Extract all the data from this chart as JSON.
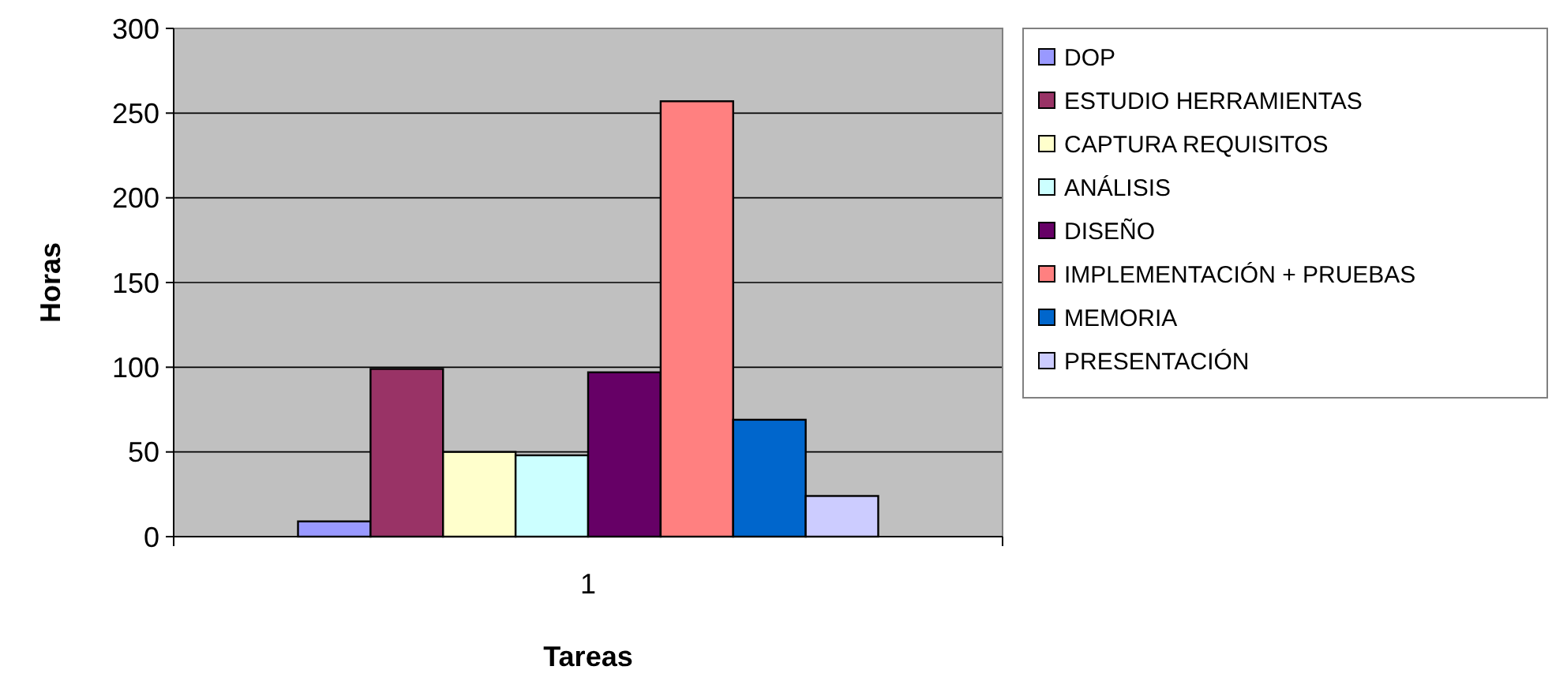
{
  "chart_data": {
    "type": "bar",
    "xlabel": "Tareas",
    "ylabel": "Horas",
    "categories": [
      "1"
    ],
    "series": [
      {
        "name": "DOP",
        "color": "#9999ff",
        "values": [
          9
        ]
      },
      {
        "name": "ESTUDIO HERRAMIENTAS",
        "color": "#993366",
        "values": [
          99
        ]
      },
      {
        "name": "CAPTURA  REQUISITOS",
        "color": "#ffffcc",
        "values": [
          50
        ]
      },
      {
        "name": "ANÁLISIS",
        "color": "#ccffff",
        "values": [
          48
        ]
      },
      {
        "name": "DISEÑO",
        "color": "#660066",
        "values": [
          97
        ]
      },
      {
        "name": "IMPLEMENTACIÓN + PRUEBAS",
        "color": "#ff8080",
        "values": [
          257
        ]
      },
      {
        "name": "MEMORIA",
        "color": "#0066cc",
        "values": [
          69
        ]
      },
      {
        "name": "PRESENTACIÓN",
        "color": "#ccccff",
        "values": [
          24
        ]
      }
    ],
    "ylim": [
      0,
      300
    ],
    "yticks": [
      0,
      50,
      100,
      150,
      200,
      250,
      300
    ],
    "grid": "y",
    "legend": "right"
  }
}
